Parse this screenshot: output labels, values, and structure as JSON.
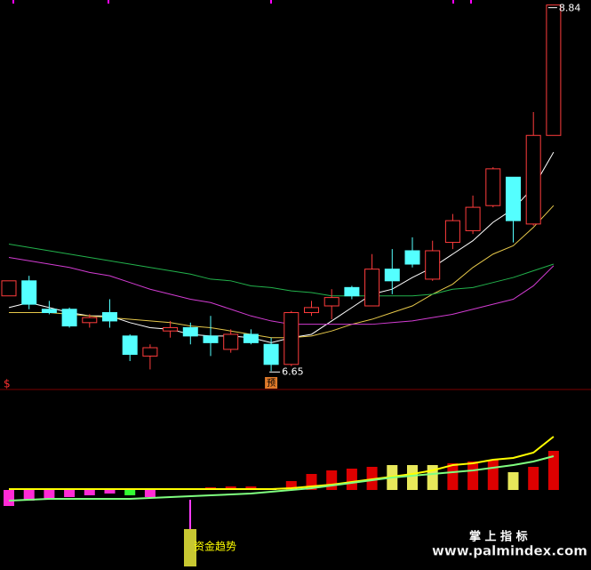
{
  "chart_data": [
    {
      "type": "candlestick",
      "open": [
        7.1,
        7.19,
        7.02,
        7.02,
        6.94,
        7.0,
        6.86,
        6.74,
        6.89,
        6.91,
        6.86,
        6.78,
        6.87,
        6.81,
        6.69,
        7.0,
        7.04,
        7.15,
        7.04,
        7.26,
        7.37,
        7.2,
        7.42,
        7.49,
        7.64,
        7.81,
        7.53,
        8.06
      ],
      "high": [
        7.19,
        7.22,
        7.07,
        7.03,
        6.99,
        7.08,
        6.87,
        6.81,
        6.95,
        6.94,
        6.98,
        6.9,
        6.9,
        6.85,
        7.01,
        7.07,
        7.14,
        7.16,
        7.35,
        7.38,
        7.45,
        7.43,
        7.59,
        7.7,
        7.87,
        7.81,
        8.2,
        8.84
      ],
      "low": [
        7.1,
        7.02,
        6.99,
        6.91,
        6.91,
        6.91,
        6.71,
        6.66,
        6.85,
        6.81,
        6.74,
        6.76,
        6.81,
        6.65,
        6.68,
        6.98,
        6.96,
        7.08,
        7.04,
        7.11,
        7.27,
        7.19,
        7.38,
        7.47,
        7.63,
        7.42,
        7.52,
        8.06
      ],
      "close": [
        7.19,
        7.05,
        7.0,
        6.92,
        6.97,
        6.95,
        6.75,
        6.79,
        6.91,
        6.86,
        6.82,
        6.87,
        6.82,
        6.69,
        7.0,
        7.03,
        7.09,
        7.1,
        7.26,
        7.19,
        7.29,
        7.37,
        7.55,
        7.63,
        7.86,
        7.55,
        8.06,
        8.84
      ],
      "up_color": "#ff3c3c",
      "down_color": "#54ffff",
      "series": [
        {
          "color": "#ffffff",
          "values": [
            7.03,
            7.06,
            7.03,
            7.0,
            6.98,
            6.98,
            6.94,
            6.91,
            6.9,
            6.87,
            6.86,
            6.86,
            6.85,
            6.82,
            6.85,
            6.87,
            6.95,
            7.03,
            7.11,
            7.14,
            7.21,
            7.27,
            7.35,
            7.43,
            7.54,
            7.62,
            7.75,
            7.96
          ]
        },
        {
          "color": "#e6c84a",
          "values": [
            7.0,
            7.0,
            7.0,
            6.99,
            6.98,
            6.97,
            6.96,
            6.95,
            6.94,
            6.92,
            6.91,
            6.89,
            6.87,
            6.85,
            6.85,
            6.86,
            6.89,
            6.93,
            6.96,
            7.0,
            7.04,
            7.11,
            7.17,
            7.27,
            7.35,
            7.4,
            7.51,
            7.64
          ]
        },
        {
          "color": "#d23cd2",
          "values": [
            7.33,
            7.31,
            7.29,
            7.27,
            7.24,
            7.22,
            7.18,
            7.14,
            7.11,
            7.08,
            7.06,
            7.02,
            6.98,
            6.95,
            6.93,
            6.93,
            6.93,
            6.93,
            6.93,
            6.94,
            6.95,
            6.97,
            6.99,
            7.02,
            7.05,
            7.08,
            7.16,
            7.28
          ]
        },
        {
          "color": "#22b24c",
          "values": [
            7.41,
            7.39,
            7.37,
            7.35,
            7.33,
            7.31,
            7.29,
            7.27,
            7.25,
            7.23,
            7.2,
            7.19,
            7.16,
            7.15,
            7.13,
            7.12,
            7.1,
            7.1,
            7.1,
            7.1,
            7.1,
            7.11,
            7.14,
            7.15,
            7.18,
            7.21,
            7.25,
            7.29
          ]
        }
      ],
      "ylim": [
        6.54,
        8.87
      ],
      "max_label": "8.84",
      "min_label": "6.65",
      "marker": "预",
      "symbol": "$"
    },
    {
      "type": "bar",
      "values": [
        -18,
        -12,
        -10,
        -8,
        -6,
        -4,
        -6,
        -8,
        1,
        2,
        3,
        4,
        4,
        2,
        10,
        18,
        22,
        24,
        26,
        28,
        28,
        28,
        30,
        32,
        34,
        20,
        26,
        44
      ],
      "colors": [
        "#ff2bd6",
        "#ff2bd6",
        "#ff2bd6",
        "#ff2bd6",
        "#ff2bd6",
        "#ff2bd6",
        "#33ff33",
        "#ff2bd6",
        "#dd0000",
        "#dd0000",
        "#dd0000",
        "#dd0000",
        "#dd0000",
        "#ffff66",
        "#dd0000",
        "#dd0000",
        "#dd0000",
        "#dd0000",
        "#dd0000",
        "#e8e85a",
        "#e8e85a",
        "#e8e85a",
        "#dd0000",
        "#dd0000",
        "#dd0000",
        "#e8e85a",
        "#dd0000",
        "#dd0000"
      ],
      "series": [
        {
          "color": "#ffff00",
          "values": [
            1,
            1,
            1,
            1,
            1,
            1,
            1,
            1,
            1,
            1,
            1,
            1,
            1,
            1,
            2,
            4,
            6,
            9,
            12,
            15,
            18,
            22,
            28,
            30,
            34,
            36,
            42,
            60
          ]
        },
        {
          "color": "#7fff7f",
          "values": [
            -12,
            -11,
            -10,
            -10,
            -10,
            -10,
            -10,
            -9,
            -8,
            -7,
            -6,
            -5,
            -4,
            -2,
            0,
            2,
            5,
            8,
            11,
            14,
            16,
            18,
            20,
            22,
            25,
            28,
            32,
            38
          ]
        }
      ],
      "ylim": [
        -90,
        70
      ],
      "annotation": "资金趋势"
    }
  ],
  "watermark": {
    "title": "掌 上 指 标",
    "url": "www.palmindex.com"
  }
}
